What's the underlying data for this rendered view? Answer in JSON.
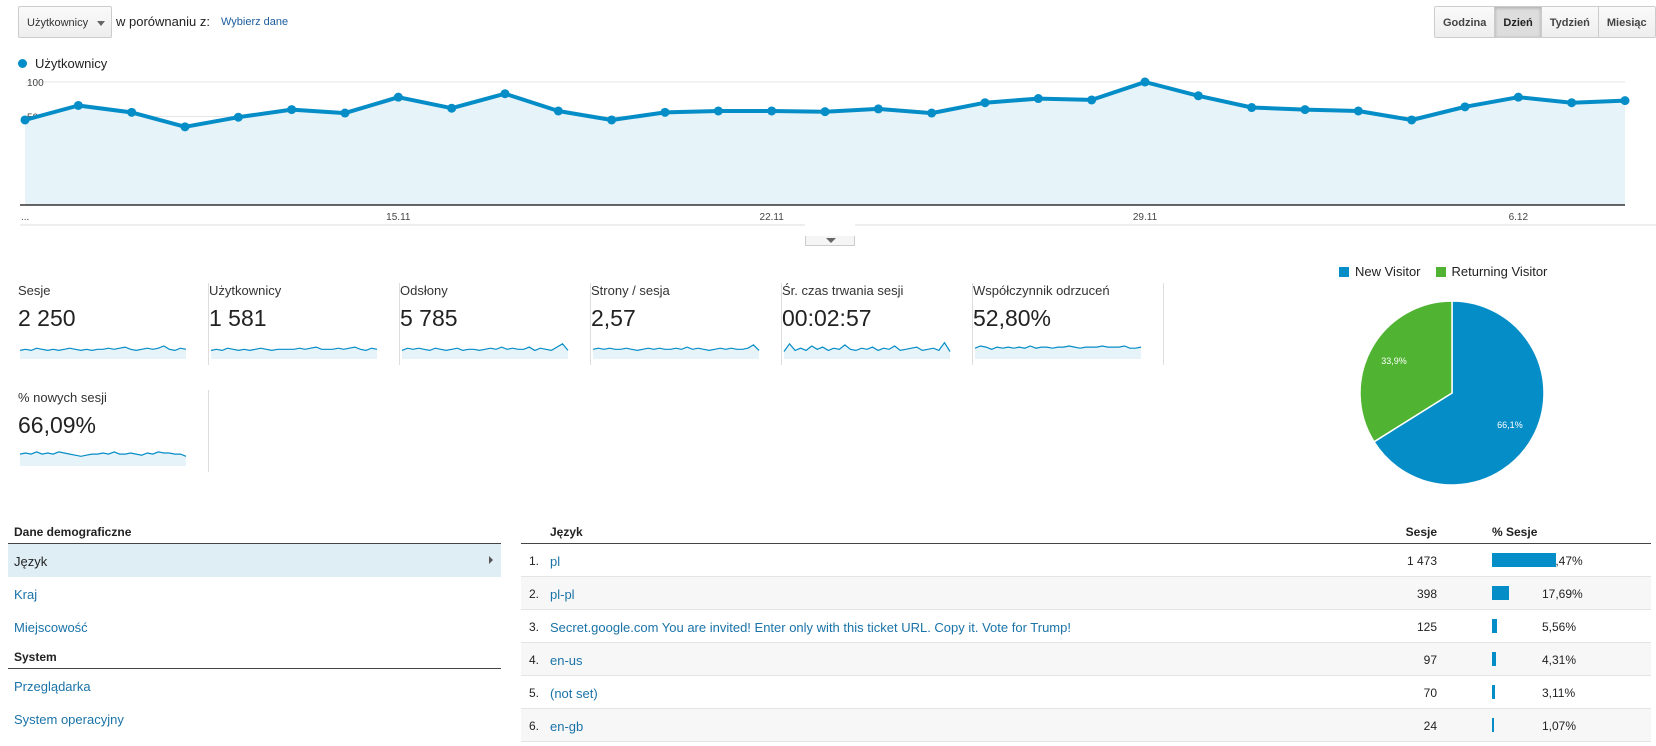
{
  "toolbar": {
    "metric_select": "Użytkownicy",
    "compare_label": "w porównaniu z:",
    "compare_link": "Wybierz dane",
    "granularity": [
      {
        "label": "Godzina",
        "active": false
      },
      {
        "label": "Dzień",
        "active": true
      },
      {
        "label": "Tydzień",
        "active": false
      },
      {
        "label": "Miesiąc",
        "active": false
      }
    ]
  },
  "main_chart": {
    "legend": "Użytkownicy",
    "color": "#058dc7",
    "fill": "#e6f3f9",
    "y_ticks": [
      "100",
      "50"
    ],
    "x_labels": [
      "...",
      "15.11",
      "22.11",
      "29.11",
      "6.12"
    ]
  },
  "chart_data": [
    {
      "type": "area",
      "series": [
        {
          "name": "Użytkownicy",
          "values": [
            45,
            66,
            56,
            35,
            49,
            60,
            55,
            78,
            62,
            83,
            58,
            45,
            56,
            58,
            58,
            57,
            61,
            55,
            70,
            76,
            74,
            100,
            80,
            63,
            60,
            58,
            45,
            64,
            78,
            70,
            73
          ]
        }
      ],
      "x_labels": [
        "...",
        "15.11",
        "22.11",
        "29.11",
        "6.12"
      ],
      "y_ticks": [
        100,
        50
      ],
      "grid": true
    },
    {
      "type": "pie",
      "categories": [
        "New Visitor",
        "Returning Visitor"
      ],
      "values": [
        66.1,
        33.9
      ],
      "labels": [
        "66,1%",
        "33,9%"
      ],
      "colors": [
        "#058dc7",
        "#50b432"
      ]
    }
  ],
  "scorecards": [
    {
      "label": "Sesje",
      "value": "2 250",
      "spark": [
        6,
        7,
        6,
        8,
        7,
        6,
        7,
        6,
        7,
        8,
        7,
        6,
        7,
        6,
        7,
        7,
        8,
        7,
        8,
        9,
        7,
        6,
        7,
        8,
        7,
        8,
        10,
        7,
        6,
        8,
        7
      ]
    },
    {
      "label": "Użytkownicy",
      "value": "1 581",
      "spark": [
        6,
        7,
        6,
        8,
        7,
        6,
        7,
        6,
        7,
        8,
        7,
        6,
        7,
        7,
        7,
        7,
        8,
        7,
        8,
        9,
        7,
        7,
        7,
        8,
        7,
        8,
        9,
        7,
        6,
        8,
        7
      ]
    },
    {
      "label": "Odsłony",
      "value": "5 785",
      "spark": [
        6,
        8,
        7,
        8,
        7,
        6,
        8,
        7,
        6,
        7,
        8,
        6,
        7,
        7,
        6,
        7,
        8,
        7,
        9,
        7,
        8,
        7,
        7,
        9,
        6,
        8,
        7,
        6,
        9,
        12,
        6
      ]
    },
    {
      "label": "Strony / sesja",
      "value": "2,57",
      "spark": [
        7,
        8,
        7,
        8,
        7,
        7,
        8,
        7,
        6,
        7,
        8,
        7,
        8,
        7,
        7,
        8,
        7,
        9,
        7,
        8,
        7,
        6,
        7,
        8,
        7,
        8,
        7,
        7,
        8,
        11,
        6
      ]
    },
    {
      "label": "Śr. czas trwania sesji",
      "value": "00:02:57",
      "spark": [
        5,
        12,
        6,
        8,
        6,
        10,
        7,
        9,
        6,
        8,
        7,
        11,
        7,
        6,
        8,
        7,
        9,
        6,
        8,
        7,
        10,
        6,
        7,
        8,
        9,
        6,
        7,
        8,
        6,
        13,
        5
      ]
    },
    {
      "label": "Współczynnik odrzuceń",
      "value": "52,80%",
      "spark": [
        8,
        10,
        9,
        7,
        9,
        8,
        9,
        8,
        9,
        8,
        10,
        8,
        9,
        9,
        8,
        9,
        9,
        10,
        9,
        8,
        9,
        9,
        9,
        10,
        9,
        9,
        9,
        10,
        8,
        8,
        9
      ]
    },
    {
      "label": "% nowych sesji",
      "value": "66,09%",
      "spark": [
        9,
        10,
        9,
        11,
        9,
        10,
        9,
        11,
        10,
        9,
        8,
        7,
        8,
        9,
        9,
        10,
        9,
        11,
        9,
        9,
        10,
        9,
        8,
        10,
        9,
        11,
        10,
        10,
        9,
        9,
        7
      ]
    }
  ],
  "pie": {
    "legend": [
      "New Visitor",
      "Returning Visitor"
    ]
  },
  "demographics": {
    "header_demo": "Dane demograficzne",
    "demo_items": [
      "Język",
      "Kraj",
      "Miejscowość"
    ],
    "header_system": "System",
    "system_items": [
      "Przeglądarka",
      "System operacyjny"
    ]
  },
  "lang_table": {
    "headers": {
      "lang": "Język",
      "sessions": "Sesje",
      "pct": "% Sesje"
    },
    "rows": [
      {
        "num": "1.",
        "lang": "pl",
        "sessions": "1 473",
        "pct": "65,47%",
        "frac": 0.6547
      },
      {
        "num": "2.",
        "lang": "pl-pl",
        "sessions": "398",
        "pct": "17,69%",
        "frac": 0.1769
      },
      {
        "num": "3.",
        "lang": "Secret.google.com You are invited! Enter only with this ticket URL. Copy it. Vote for Trump!",
        "sessions": "125",
        "pct": "5,56%",
        "frac": 0.0556
      },
      {
        "num": "4.",
        "lang": "en-us",
        "sessions": "97",
        "pct": "4,31%",
        "frac": 0.0431
      },
      {
        "num": "5.",
        "lang": "(not set)",
        "sessions": "70",
        "pct": "3,11%",
        "frac": 0.0311
      },
      {
        "num": "6.",
        "lang": "en-gb",
        "sessions": "24",
        "pct": "1,07%",
        "frac": 0.0107
      }
    ]
  }
}
